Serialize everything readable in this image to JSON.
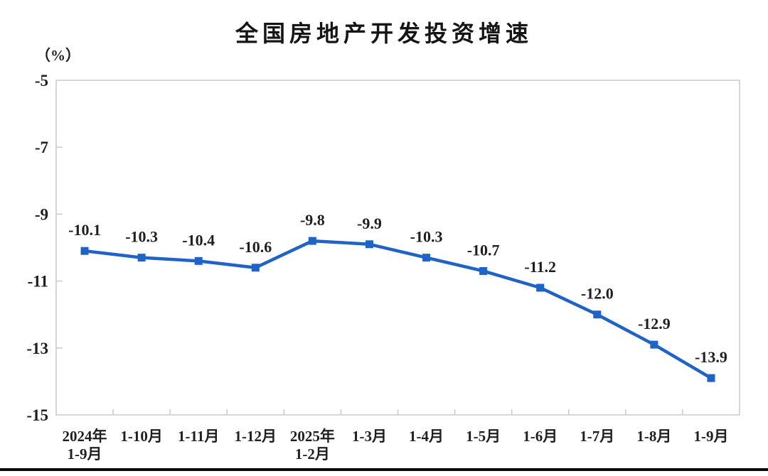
{
  "chart_data": {
    "type": "line",
    "title": "全国房地产开发投资增速",
    "unit_label": "（%）",
    "categories": [
      "2024年\n1-9月",
      "1-10月",
      "1-11月",
      "1-12月",
      "2025年\n1-2月",
      "1-3月",
      "1-4月",
      "1-5月",
      "1-6月",
      "1-7月",
      "1-8月",
      "1-9月"
    ],
    "values": [
      -10.1,
      -10.3,
      -10.4,
      -10.6,
      -9.8,
      -9.9,
      -10.3,
      -10.7,
      -11.2,
      -12.0,
      -12.9,
      -13.9
    ],
    "data_labels": [
      "-10.1",
      "-10.3",
      "-10.4",
      "-10.6",
      "-9.8",
      "-9.9",
      "-10.3",
      "-10.7",
      "-11.2",
      "-12.0",
      "-12.9",
      "-13.9"
    ],
    "ylim": [
      -15,
      -5
    ],
    "yticks": [
      -5,
      -7,
      -9,
      -11,
      -13,
      -15
    ],
    "ytick_labels": [
      "-5",
      "-7",
      "-9",
      "-11",
      "-13",
      "-15"
    ],
    "grid": false,
    "legend": "none",
    "marker": "square",
    "colors": {
      "series": "#1f63c6",
      "axis": "#c9c9c9",
      "text": "#1f1f1f"
    }
  }
}
